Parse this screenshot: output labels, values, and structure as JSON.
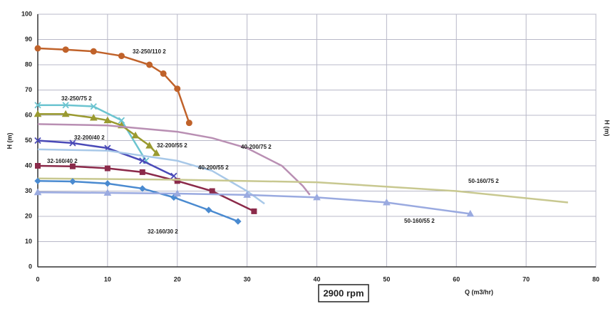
{
  "chart_data": {
    "type": "line",
    "xlabel": "Q (m3/hr)",
    "ylabel": "H (m)",
    "y2_label": "H (m)",
    "annotation": "2900 rpm",
    "xlim": [
      0,
      80
    ],
    "xticks": [
      0,
      10,
      20,
      30,
      40,
      50,
      60,
      70,
      80
    ],
    "ylim": [
      0,
      100
    ],
    "yticks": [
      0,
      10,
      20,
      30,
      40,
      50,
      60,
      70,
      80,
      90,
      100
    ],
    "grid": true,
    "series": [
      {
        "name": "32-250/110 2",
        "color": "#c0622a",
        "marker": "circle",
        "x": [
          0,
          4,
          8,
          12,
          16,
          18,
          20,
          21.7
        ],
        "values": [
          86.5,
          86,
          85.3,
          83.5,
          80,
          76.5,
          70.5,
          57
        ]
      },
      {
        "name": "32-250/75 2",
        "color": "#6cc4d0",
        "marker": "x",
        "x": [
          0,
          4,
          8,
          12,
          15.5
        ],
        "values": [
          64,
          64,
          63.5,
          58,
          42
        ]
      },
      {
        "name": "32-200/55 2",
        "color": "#9a9a30",
        "marker": "triangle",
        "x": [
          0,
          4,
          8,
          10,
          12,
          14,
          16,
          17
        ],
        "values": [
          60.5,
          60.5,
          59,
          58,
          56,
          52,
          48,
          45
        ]
      },
      {
        "name": "40-200/75 2",
        "color": "#b98fb3",
        "marker": "none",
        "x": [
          0,
          10,
          20,
          25,
          30,
          35,
          38,
          39
        ],
        "values": [
          56.5,
          56,
          53.5,
          51,
          47,
          40,
          32,
          28.5
        ]
      },
      {
        "name": "32-200/40 2",
        "color": "#4a4ab8",
        "marker": "x",
        "x": [
          0,
          5,
          10,
          15,
          19.5
        ],
        "values": [
          50,
          49,
          47,
          42,
          36
        ]
      },
      {
        "name": "40-200/55 2",
        "color": "#a8c8e8",
        "marker": "none",
        "x": [
          0,
          10,
          20,
          25,
          30,
          32.5
        ],
        "values": [
          46.5,
          46,
          42,
          38,
          30,
          25
        ]
      },
      {
        "name": "32-160/40 2",
        "color": "#8b2a4a",
        "marker": "square",
        "x": [
          0,
          5,
          10,
          15,
          20,
          25,
          31
        ],
        "values": [
          40,
          39.8,
          39,
          37.5,
          34,
          30,
          22
        ]
      },
      {
        "name": "50-160/75 2",
        "color": "#c8c890",
        "marker": "none",
        "x": [
          0,
          20,
          40,
          60,
          76
        ],
        "values": [
          35,
          34.5,
          33.5,
          30,
          25.5
        ]
      },
      {
        "name": "32-160/30 2",
        "color": "#4a8ad0",
        "marker": "diamond",
        "x": [
          0,
          5,
          10,
          15,
          19.5,
          24.5,
          28.7
        ],
        "values": [
          34,
          33.8,
          33,
          31,
          27.5,
          22.5,
          18
        ]
      },
      {
        "name": "50-160/55 2",
        "color": "#9aaae0",
        "marker": "triangle",
        "x": [
          0,
          10,
          20,
          30,
          40,
          50,
          62
        ],
        "values": [
          29.5,
          29.3,
          29,
          28.5,
          27.5,
          25.5,
          21
        ]
      }
    ]
  }
}
